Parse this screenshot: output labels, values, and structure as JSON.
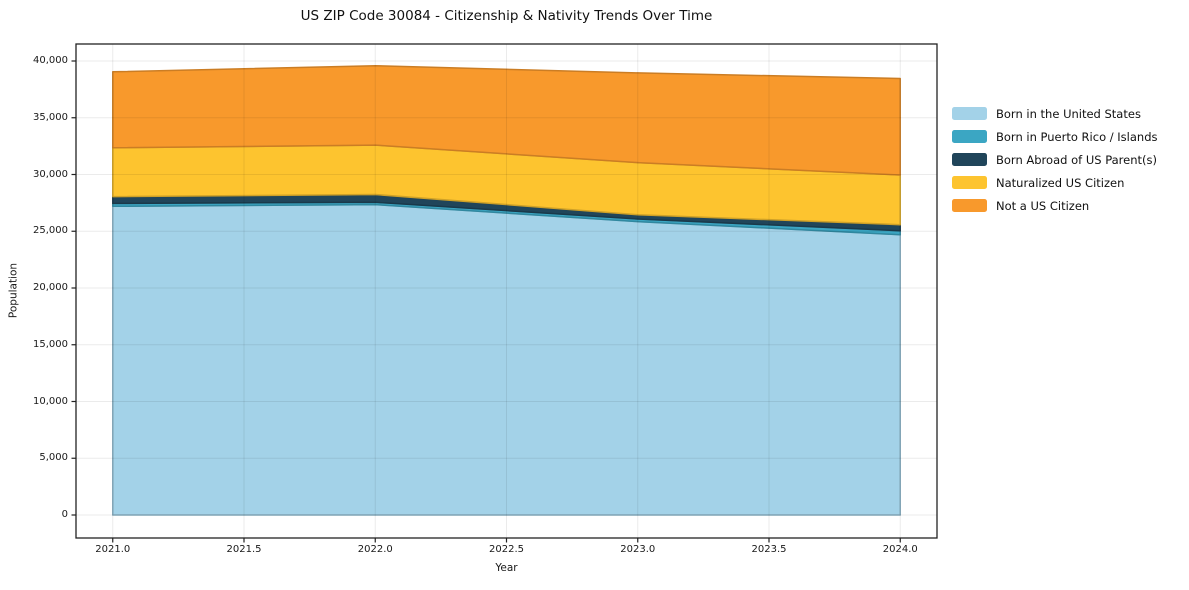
{
  "chart_data": {
    "type": "area",
    "stacked": true,
    "title": "US ZIP Code 30084 - Citizenship & Nativity Trends Over Time",
    "xlabel": "Year",
    "ylabel": "Population",
    "x": [
      2021,
      2022,
      2023,
      2024
    ],
    "xlim": [
      2020.86,
      2024.14
    ],
    "ylim": [
      0,
      40000
    ],
    "x_tick_labels": [
      "2021.0",
      "2021.5",
      "2022.0",
      "2022.5",
      "2023.0",
      "2023.5",
      "2024.0"
    ],
    "y_tick_labels": [
      "0",
      "5,000",
      "10,000",
      "15,000",
      "20,000",
      "25,000",
      "30,000",
      "35,000",
      "40,000"
    ],
    "grid": true,
    "grid_color": "#ebebeb",
    "legend_position": "right-outside",
    "series": [
      {
        "name": "Born in the United States",
        "color": "#a3d2e8",
        "values": [
          27200,
          27350,
          25850,
          24700
        ]
      },
      {
        "name": "Born in Puerto Rico / Islands",
        "color": "#3ba6c3",
        "values": [
          250,
          200,
          230,
          350
        ]
      },
      {
        "name": "Born Abroad of US Parent(s)",
        "color": "#20455a",
        "values": [
          600,
          690,
          380,
          530
        ]
      },
      {
        "name": "Naturalized US Citizen",
        "color": "#fdc42f",
        "values": [
          4300,
          4350,
          4590,
          4380
        ]
      },
      {
        "name": "Not a US Citizen",
        "color": "#f8992c",
        "values": [
          6700,
          7000,
          7900,
          8500
        ]
      }
    ]
  }
}
